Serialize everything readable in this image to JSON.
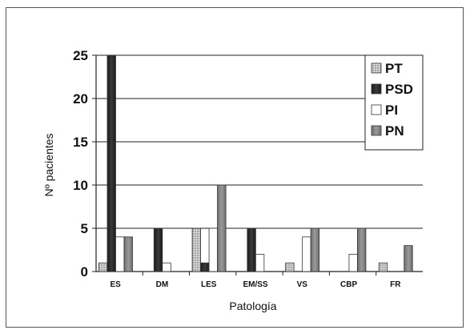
{
  "chart_data": {
    "type": "bar",
    "xlabel": "Patología",
    "ylabel": "Nº pacientes",
    "ylim": [
      0,
      25
    ],
    "yticks": [
      0,
      5,
      10,
      15,
      20,
      25
    ],
    "grid": true,
    "legend_position": "top-right",
    "categories": [
      "ES",
      "DM",
      "LES",
      "EM/SS",
      "VS",
      "CBP",
      "FR"
    ],
    "series": [
      {
        "name": "PT",
        "color": "#c8c8c8",
        "pattern": "dots",
        "values": [
          1,
          0,
          5,
          0,
          1,
          0,
          1
        ]
      },
      {
        "name": "PSD",
        "color": "#2e2e2e",
        "pattern": "solid",
        "values": [
          25,
          5,
          1,
          5,
          0,
          0,
          0
        ]
      },
      {
        "name": "PI",
        "color": "#ffffff",
        "pattern": "solid",
        "values": [
          4,
          1,
          5,
          2,
          4,
          2,
          0
        ]
      },
      {
        "name": "PN",
        "color": "#8a8a8a",
        "pattern": "solid",
        "values": [
          4,
          0,
          10,
          0,
          5,
          5,
          3
        ]
      }
    ]
  }
}
